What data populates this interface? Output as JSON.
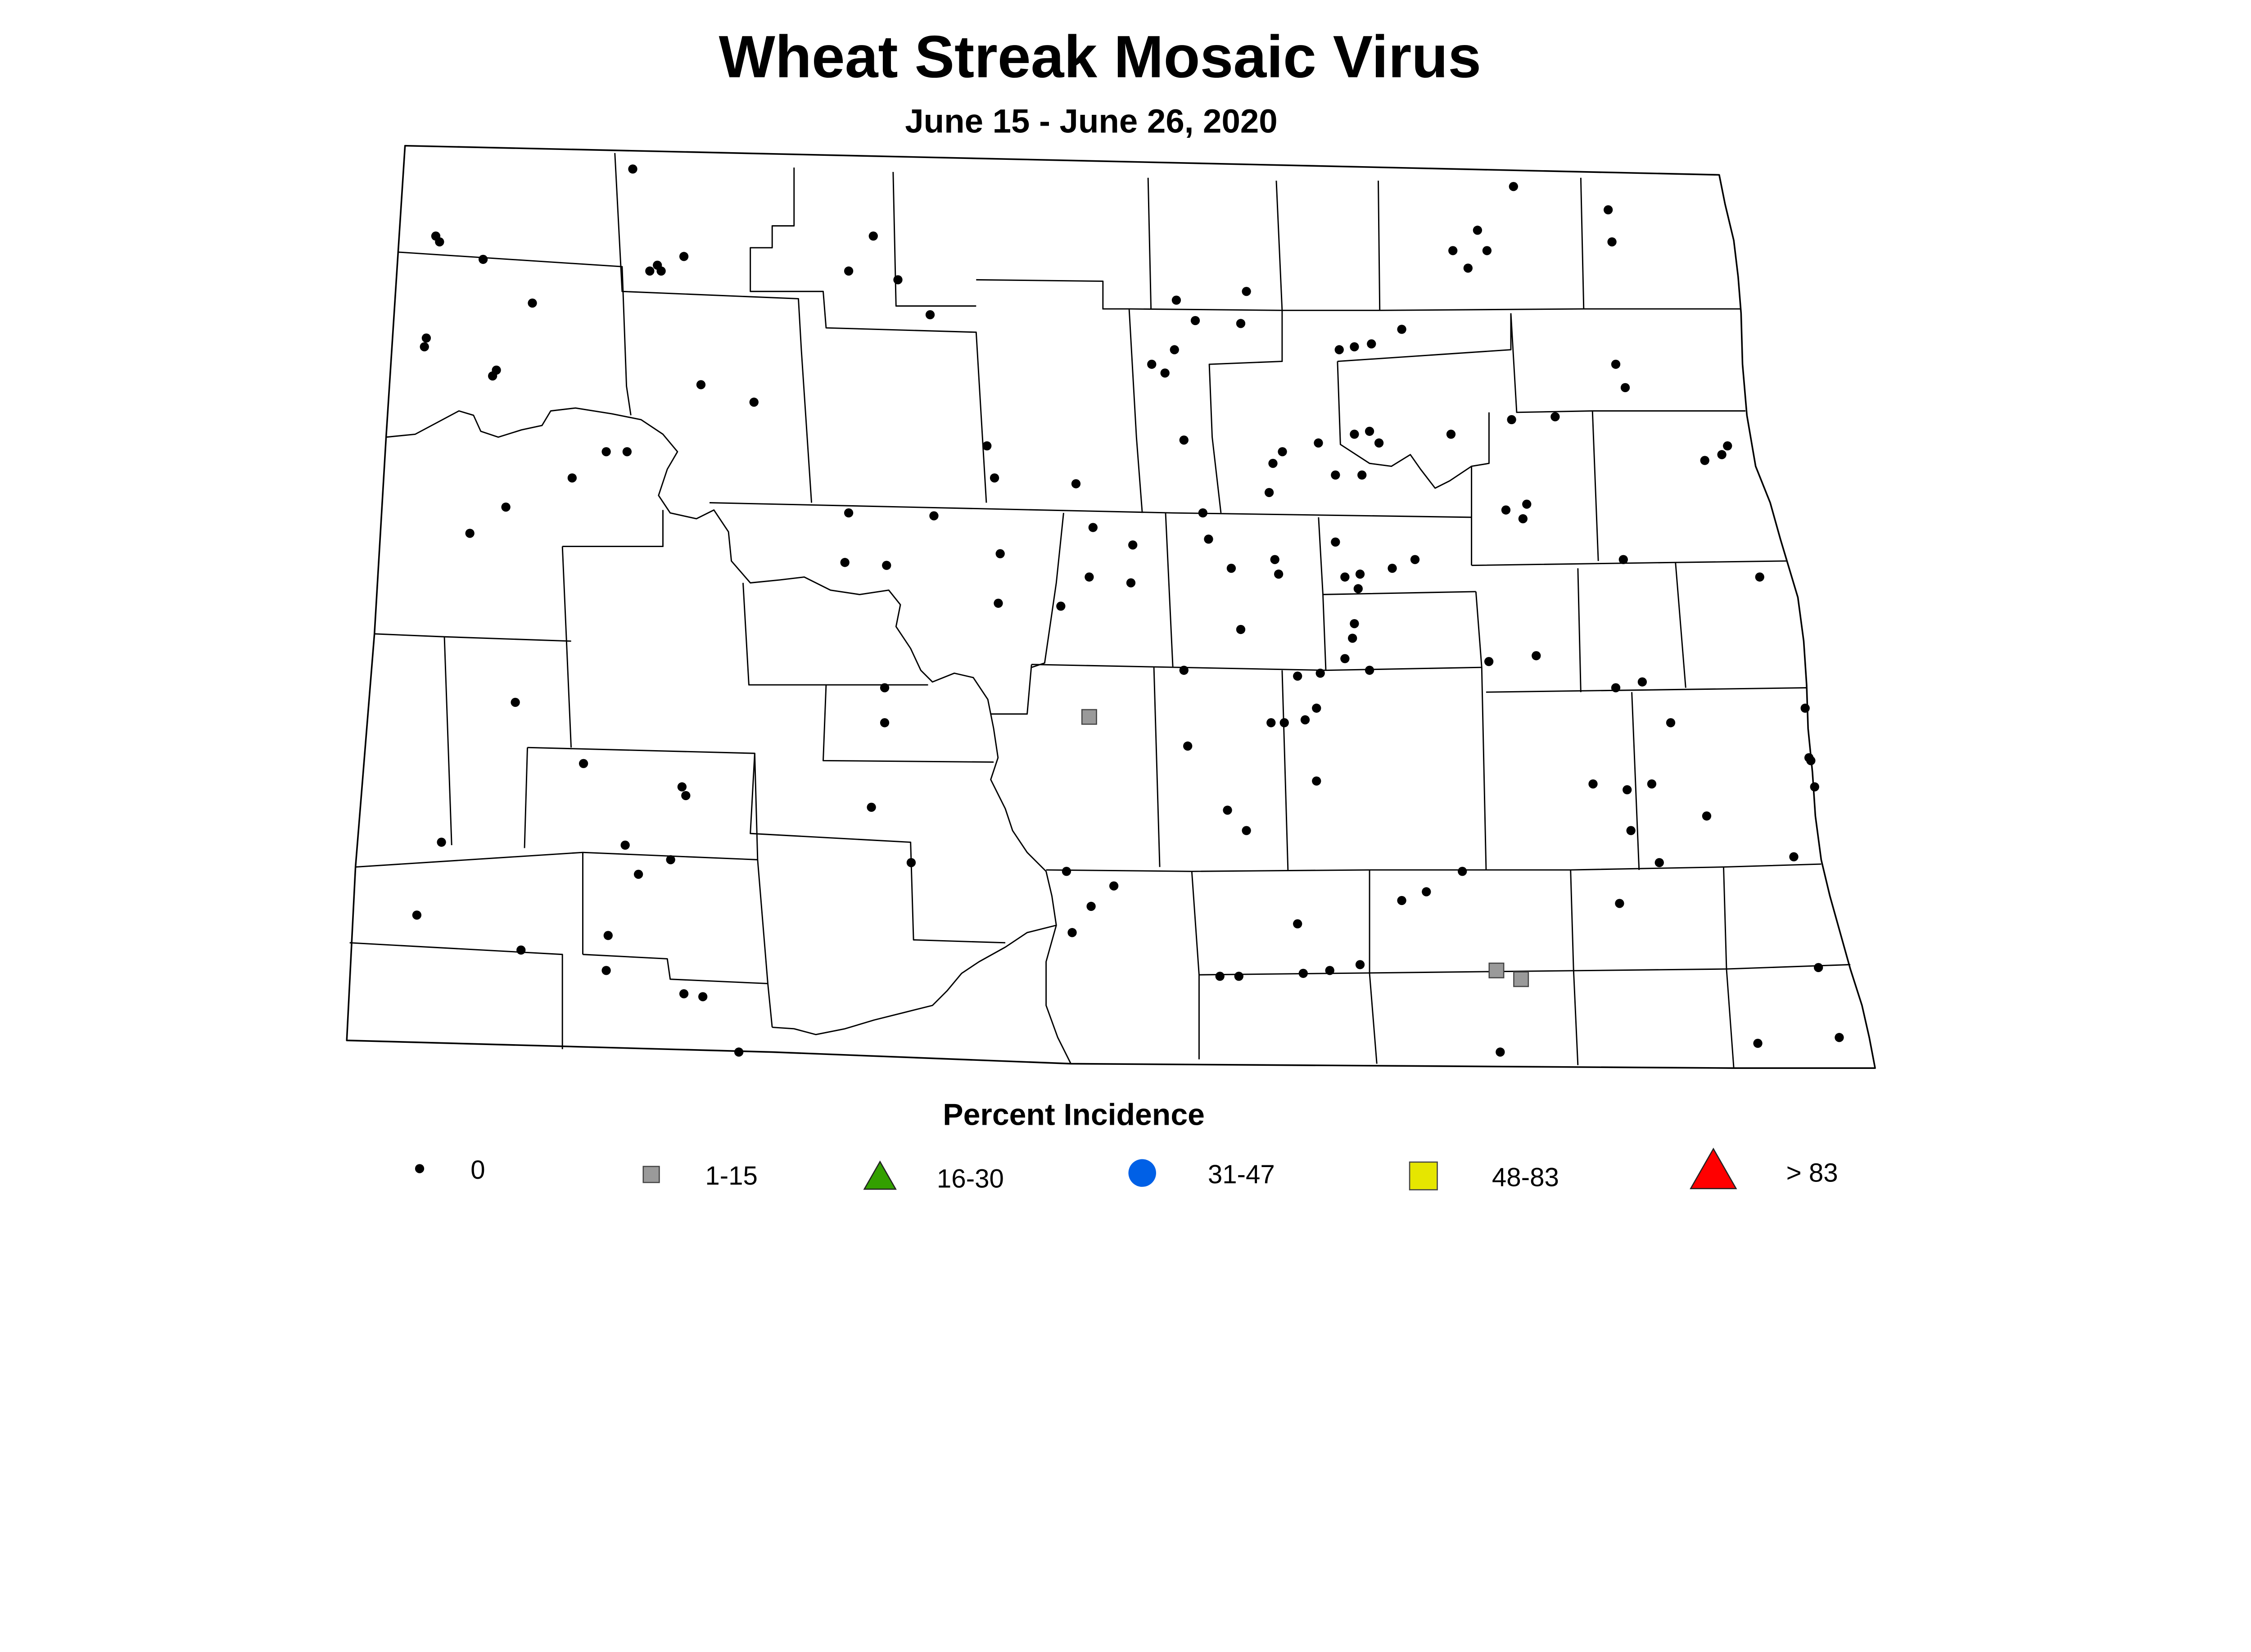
{
  "title": "Wheat Streak Mosaic Virus",
  "subtitle": "June 15 - June 26, 2020",
  "legend": {
    "title": "Percent Incidence",
    "items": [
      {
        "label": "0",
        "shape": "dot",
        "color": "#000000"
      },
      {
        "label": "1-15",
        "shape": "square",
        "color": "#9a9a9a"
      },
      {
        "label": "16-30",
        "shape": "triangle",
        "color": "#33a000"
      },
      {
        "label": "31-47",
        "shape": "circle",
        "color": "#0060e6"
      },
      {
        "label": "48-83",
        "shape": "square",
        "color": "#e6e600"
      },
      {
        "label": "> 83",
        "shape": "triangle",
        "color": "#ff0000"
      }
    ]
  },
  "map_data": {
    "region": "North Dakota counties",
    "samples": [
      {
        "category": "0",
        "points": [
          [
            -102.69,
            48.97
          ],
          [
            -103.73,
            48.74
          ],
          [
            -103.71,
            48.72
          ],
          [
            -103.48,
            48.66
          ],
          [
            -102.42,
            48.67
          ],
          [
            -102.6,
            48.62
          ],
          [
            -102.56,
            48.64
          ],
          [
            -102.54,
            48.62
          ],
          [
            -101.42,
            48.74
          ],
          [
            -101.55,
            48.62
          ],
          [
            -101.29,
            48.59
          ],
          [
            -101.12,
            48.47
          ],
          [
            -103.22,
            48.51
          ],
          [
            -103.78,
            48.39
          ],
          [
            -103.79,
            48.36
          ],
          [
            -103.41,
            48.28
          ],
          [
            -103.43,
            48.26
          ],
          [
            -102.33,
            48.23
          ],
          [
            -102.05,
            48.17
          ],
          [
            -98.04,
            48.91
          ],
          [
            -97.54,
            48.83
          ],
          [
            -97.52,
            48.72
          ],
          [
            -98.23,
            48.76
          ],
          [
            -98.36,
            48.69
          ],
          [
            -98.18,
            48.69
          ],
          [
            -98.28,
            48.63
          ],
          [
            -99.82,
            48.52
          ],
          [
            -99.45,
            48.55
          ],
          [
            -99.72,
            48.45
          ],
          [
            -99.48,
            48.44
          ],
          [
            -99.83,
            48.35
          ],
          [
            -99.95,
            48.3
          ],
          [
            -99.88,
            48.27
          ],
          [
            -98.96,
            48.35
          ],
          [
            -98.88,
            48.36
          ],
          [
            -98.79,
            48.37
          ],
          [
            -98.63,
            48.42
          ],
          [
            -97.5,
            48.3
          ],
          [
            -97.45,
            48.22
          ],
          [
            -98.05,
            48.11
          ],
          [
            -97.82,
            48.12
          ],
          [
            -99.78,
            48.04
          ],
          [
            -99.26,
            48.0
          ],
          [
            -99.31,
            47.96
          ],
          [
            -99.07,
            48.03
          ],
          [
            -98.88,
            48.06
          ],
          [
            -98.8,
            48.07
          ],
          [
            -98.75,
            48.03
          ],
          [
            -98.37,
            48.06
          ],
          [
            -98.98,
            47.92
          ],
          [
            -98.84,
            47.92
          ],
          [
            -99.33,
            47.86
          ],
          [
            -96.91,
            48.02
          ],
          [
            -96.94,
            47.99
          ],
          [
            -97.03,
            47.97
          ],
          [
            -100.82,
            48.02
          ],
          [
            -100.78,
            47.91
          ],
          [
            -100.35,
            47.89
          ],
          [
            -102.83,
            48.0
          ],
          [
            -102.72,
            48.0
          ],
          [
            -103.01,
            47.91
          ],
          [
            -103.36,
            47.81
          ],
          [
            -103.55,
            47.72
          ],
          [
            -98.08,
            47.8
          ],
          [
            -97.97,
            47.82
          ],
          [
            -97.99,
            47.77
          ],
          [
            -99.68,
            47.79
          ],
          [
            -101.55,
            47.79
          ],
          [
            -101.1,
            47.78
          ],
          [
            -100.26,
            47.74
          ],
          [
            -100.05,
            47.68
          ],
          [
            -99.65,
            47.7
          ],
          [
            -101.57,
            47.62
          ],
          [
            -101.35,
            47.61
          ],
          [
            -100.75,
            47.65
          ],
          [
            -99.53,
            47.6
          ],
          [
            -99.3,
            47.63
          ],
          [
            -99.28,
            47.58
          ],
          [
            -98.85,
            47.58
          ],
          [
            -98.93,
            47.57
          ],
          [
            -98.68,
            47.6
          ],
          [
            -98.56,
            47.63
          ],
          [
            -98.98,
            47.69
          ],
          [
            -98.86,
            47.53
          ],
          [
            -97.46,
            47.63
          ],
          [
            -96.74,
            47.57
          ],
          [
            -100.28,
            47.57
          ],
          [
            -100.06,
            47.55
          ],
          [
            -100.76,
            47.48
          ],
          [
            -100.43,
            47.47
          ],
          [
            -99.48,
            47.39
          ],
          [
            -98.88,
            47.41
          ],
          [
            -98.89,
            47.36
          ],
          [
            -98.93,
            47.29
          ],
          [
            -98.8,
            47.25
          ],
          [
            -98.17,
            47.28
          ],
          [
            -97.92,
            47.3
          ],
          [
            -97.5,
            47.19
          ],
          [
            -97.36,
            47.21
          ],
          [
            -99.78,
            47.25
          ],
          [
            -99.18,
            47.23
          ],
          [
            -99.06,
            47.24
          ],
          [
            -101.36,
            47.19
          ],
          [
            -101.36,
            47.07
          ],
          [
            -103.31,
            47.14
          ],
          [
            -99.08,
            47.12
          ],
          [
            -99.32,
            47.07
          ],
          [
            -99.25,
            47.07
          ],
          [
            -99.14,
            47.08
          ],
          [
            -96.5,
            47.12
          ],
          [
            -97.21,
            47.07
          ],
          [
            -99.76,
            46.99
          ],
          [
            -102.95,
            46.93
          ],
          [
            -102.43,
            46.85
          ],
          [
            -102.41,
            46.82
          ],
          [
            -96.48,
            46.95
          ],
          [
            -96.47,
            46.94
          ],
          [
            -96.45,
            46.85
          ],
          [
            -97.62,
            46.86
          ],
          [
            -97.44,
            46.84
          ],
          [
            -97.31,
            46.86
          ],
          [
            -99.08,
            46.87
          ],
          [
            -101.43,
            46.78
          ],
          [
            -99.55,
            46.77
          ],
          [
            -99.45,
            46.7
          ],
          [
            -97.02,
            46.75
          ],
          [
            -97.42,
            46.7
          ],
          [
            -103.7,
            46.66
          ],
          [
            -102.73,
            46.65
          ],
          [
            -102.49,
            46.6
          ],
          [
            -102.66,
            46.55
          ],
          [
            -101.22,
            46.59
          ],
          [
            -97.27,
            46.59
          ],
          [
            -96.56,
            46.61
          ],
          [
            -98.31,
            46.56
          ],
          [
            -100.4,
            46.56
          ],
          [
            -100.15,
            46.51
          ],
          [
            -100.27,
            46.44
          ],
          [
            -98.5,
            46.49
          ],
          [
            -98.63,
            46.46
          ],
          [
            -97.48,
            46.45
          ],
          [
            -103.83,
            46.41
          ],
          [
            -99.18,
            46.38
          ],
          [
            -100.37,
            46.35
          ],
          [
            -102.82,
            46.34
          ],
          [
            -103.28,
            46.29
          ],
          [
            -98.85,
            46.24
          ],
          [
            -99.01,
            46.22
          ],
          [
            -99.15,
            46.21
          ],
          [
            -99.59,
            46.2
          ],
          [
            -99.49,
            46.2
          ],
          [
            -96.43,
            46.23
          ],
          [
            -102.83,
            46.22
          ],
          [
            -102.42,
            46.14
          ],
          [
            -102.32,
            46.13
          ],
          [
            -96.75,
            45.97
          ],
          [
            -96.32,
            45.99
          ],
          [
            -98.11,
            45.94
          ],
          [
            -102.13,
            45.94
          ]
        ]
      },
      {
        "category": "1-15",
        "points": [
          [
            -100.28,
            47.09
          ],
          [
            -98.13,
            46.22
          ],
          [
            -98.0,
            46.19
          ]
        ]
      }
    ]
  }
}
